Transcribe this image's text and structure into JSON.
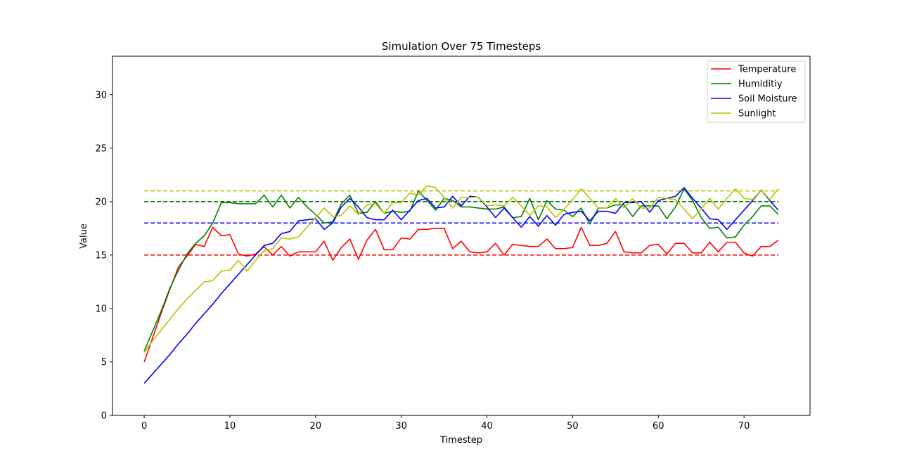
{
  "chart_data": {
    "type": "line",
    "title": "Simulation Over 75 Timesteps",
    "xlabel": "Timestep",
    "ylabel": "Value",
    "xlim": [
      -3.7,
      77.7
    ],
    "ylim": [
      0,
      33.6
    ],
    "xticks": [
      0,
      10,
      20,
      30,
      40,
      50,
      60,
      70
    ],
    "yticks": [
      0,
      5,
      10,
      15,
      20,
      25,
      30
    ],
    "grid": false,
    "legend_position": "upper right",
    "x": [
      0,
      1,
      2,
      3,
      4,
      5,
      6,
      7,
      8,
      9,
      10,
      11,
      12,
      13,
      14,
      15,
      16,
      17,
      18,
      19,
      20,
      21,
      22,
      23,
      24,
      25,
      26,
      27,
      28,
      29,
      30,
      31,
      32,
      33,
      34,
      35,
      36,
      37,
      38,
      39,
      40,
      41,
      42,
      43,
      44,
      45,
      46,
      47,
      48,
      49,
      50,
      51,
      52,
      53,
      54,
      55,
      56,
      57,
      58,
      59,
      60,
      61,
      62,
      63,
      64,
      65,
      66,
      67,
      68,
      69,
      70,
      71,
      72,
      73,
      74
    ],
    "series": [
      {
        "name": "Temperature",
        "color": "#ff0000",
        "values": [
          5.0,
          7.3,
          9.6,
          11.8,
          13.9,
          14.9,
          16.0,
          15.8,
          17.6,
          16.8,
          16.9,
          15.1,
          14.9,
          15.1,
          15.8,
          15.0,
          15.8,
          14.9,
          15.3,
          15.3,
          15.3,
          16.3,
          14.5,
          15.7,
          16.5,
          14.6,
          16.4,
          17.4,
          15.5,
          15.5,
          16.6,
          16.5,
          17.4,
          17.4,
          17.5,
          17.5,
          15.6,
          16.3,
          15.3,
          15.2,
          15.3,
          16.1,
          15.0,
          16.0,
          15.9,
          15.8,
          15.8,
          16.5,
          15.6,
          15.6,
          15.7,
          17.6,
          15.9,
          15.9,
          16.1,
          17.2,
          15.3,
          15.2,
          15.2,
          15.9,
          16.0,
          15.1,
          16.1,
          16.1,
          15.2,
          15.2,
          16.2,
          15.3,
          16.2,
          16.2,
          15.2,
          14.9,
          15.8,
          15.8,
          16.4
        ]
      },
      {
        "name": "Humiditiy",
        "color": "#008000",
        "values": [
          6.0,
          7.9,
          9.8,
          11.9,
          13.6,
          15.1,
          16.1,
          16.8,
          18.0,
          19.9,
          19.9,
          19.8,
          19.8,
          19.8,
          20.6,
          19.5,
          20.6,
          19.4,
          20.4,
          19.5,
          18.8,
          18.0,
          18.1,
          19.8,
          20.6,
          18.9,
          19.0,
          20.0,
          18.9,
          19.1,
          19.0,
          19.1,
          21.0,
          20.1,
          19.2,
          20.3,
          20.1,
          19.5,
          19.5,
          19.4,
          19.3,
          19.3,
          19.5,
          18.5,
          18.6,
          20.3,
          18.3,
          20.1,
          19.3,
          19.2,
          18.6,
          19.4,
          17.9,
          19.4,
          19.4,
          19.7,
          19.7,
          18.6,
          19.6,
          19.6,
          19.6,
          18.4,
          19.5,
          21.2,
          20.1,
          18.5,
          17.5,
          17.6,
          16.6,
          16.7,
          17.8,
          18.6,
          19.6,
          19.6,
          18.8
        ]
      },
      {
        "name": "Soil Moisture",
        "color": "#0000ff",
        "values": [
          3.0,
          3.9,
          4.8,
          5.7,
          6.7,
          7.6,
          8.6,
          9.5,
          10.4,
          11.4,
          12.3,
          13.2,
          14.1,
          15.0,
          15.9,
          16.1,
          17.0,
          17.2,
          18.2,
          18.3,
          18.4,
          17.4,
          18.0,
          19.5,
          20.3,
          19.5,
          18.5,
          18.3,
          18.3,
          19.2,
          18.3,
          19.2,
          20.1,
          20.3,
          19.4,
          19.5,
          20.5,
          19.6,
          20.5,
          20.4,
          19.5,
          18.5,
          19.4,
          18.5,
          17.6,
          18.6,
          17.7,
          18.7,
          17.8,
          18.8,
          19.0,
          19.1,
          18.2,
          19.1,
          19.1,
          18.9,
          19.9,
          19.9,
          20.0,
          19.0,
          20.1,
          20.3,
          20.5,
          21.3,
          20.3,
          19.4,
          18.4,
          18.3,
          17.4,
          18.3,
          19.2,
          20.1,
          21.1,
          20.1,
          19.2
        ]
      },
      {
        "name": "Sunlight",
        "color": "#bfbf00",
        "values": [
          5.9,
          7.0,
          8.0,
          9.0,
          10.0,
          10.9,
          11.7,
          12.5,
          12.6,
          13.5,
          13.6,
          14.5,
          13.5,
          14.5,
          15.4,
          15.6,
          16.6,
          16.5,
          16.7,
          17.6,
          18.5,
          19.4,
          18.6,
          18.7,
          19.6,
          18.8,
          19.7,
          19.8,
          18.9,
          19.9,
          19.9,
          20.8,
          20.6,
          21.5,
          21.3,
          20.4,
          19.4,
          20.4,
          20.4,
          20.4,
          19.6,
          19.7,
          19.6,
          20.4,
          19.6,
          18.7,
          19.6,
          19.5,
          18.5,
          19.3,
          20.2,
          21.2,
          20.3,
          19.4,
          19.4,
          20.3,
          19.4,
          20.3,
          19.4,
          19.4,
          20.4,
          20.3,
          20.2,
          19.3,
          18.4,
          19.3,
          20.3,
          19.3,
          20.3,
          21.2,
          20.3,
          20.2,
          21.1,
          20.2,
          21.2
        ]
      }
    ],
    "reference_lines": [
      {
        "series": "Temperature",
        "y": 15,
        "color": "#ff0000"
      },
      {
        "series": "Humiditiy",
        "y": 20,
        "color": "#008000"
      },
      {
        "series": "Soil Moisture",
        "y": 18,
        "color": "#0000ff"
      },
      {
        "series": "Sunlight",
        "y": 21,
        "color": "#bfbf00"
      }
    ]
  }
}
